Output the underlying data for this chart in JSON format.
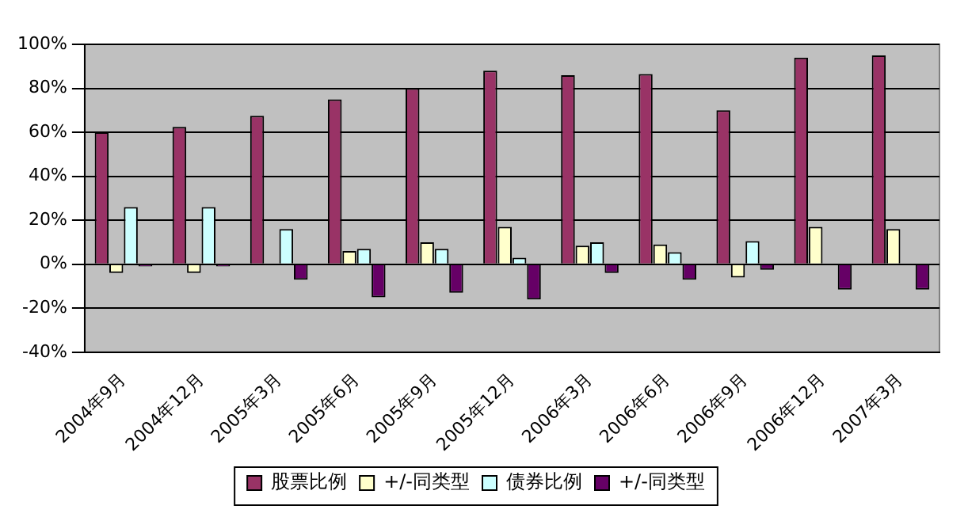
{
  "chart_data": {
    "type": "bar",
    "categories": [
      "2004年9月",
      "2004年12月",
      "2005年3月",
      "2005年6月",
      "2005年9月",
      "2005年12月",
      "2006年3月",
      "2006年6月",
      "2006年9月",
      "2006年12月",
      "2007年3月"
    ],
    "series": [
      {
        "name": "股票比例",
        "color": "#993366",
        "values": [
          60,
          62.5,
          67.5,
          75,
          80,
          88,
          86,
          86.5,
          70,
          94,
          95
        ]
      },
      {
        "name": "+/-同类型",
        "color": "#ffffcc",
        "values": [
          -4,
          -4,
          null,
          6,
          10,
          17,
          8.5,
          9,
          -6,
          17,
          16
        ]
      },
      {
        "name": "债券比例",
        "color": "#ccffff",
        "values": [
          26,
          26,
          16,
          7,
          7,
          3,
          10,
          5.5,
          10.5,
          null,
          null
        ]
      },
      {
        "name": "+/-同类型",
        "color": "#660066",
        "values": [
          -1,
          -1,
          -7,
          -15,
          -13,
          -16,
          -4,
          -7,
          -2.5,
          -11.5,
          -11.5
        ]
      }
    ],
    "ylim": [
      -40,
      100
    ],
    "yticks": [
      {
        "value": -40,
        "label": "-40%"
      },
      {
        "value": -20,
        "label": "-20%"
      },
      {
        "value": 0,
        "label": "0%"
      },
      {
        "value": 20,
        "label": "20%"
      },
      {
        "value": 40,
        "label": "40%"
      },
      {
        "value": 60,
        "label": "60%"
      },
      {
        "value": 80,
        "label": "80%"
      },
      {
        "value": 100,
        "label": "100%"
      }
    ],
    "grid": "y",
    "legend": "bottom"
  }
}
